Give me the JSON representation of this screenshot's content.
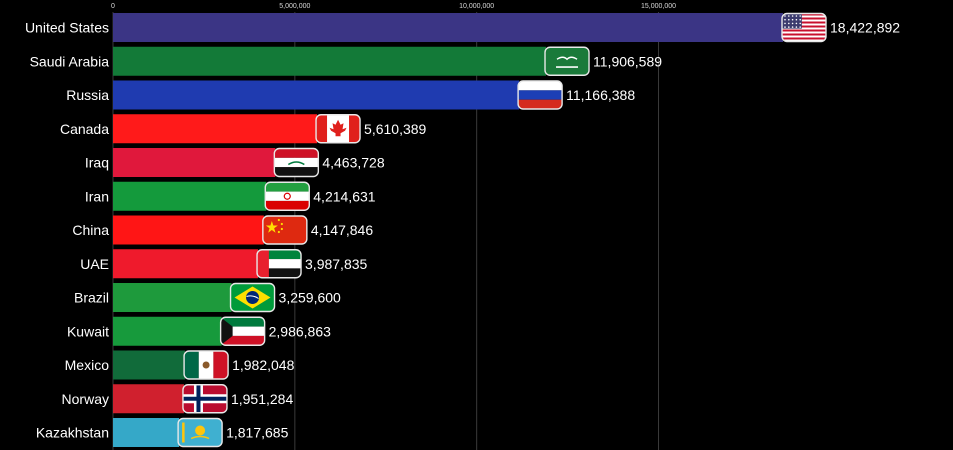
{
  "chart_data": {
    "type": "bar",
    "orientation": "horizontal",
    "title": "",
    "xlabel": "",
    "ylabel": "",
    "xlim": [
      0,
      18422892
    ],
    "x_ticks": [
      0,
      5000000,
      10000000,
      15000000
    ],
    "x_tick_labels": [
      "0",
      "5,000,000",
      "10,000,000",
      "15,000,000"
    ],
    "grid": true,
    "categories": [
      "United States",
      "Saudi Arabia",
      "Russia",
      "Canada",
      "Iraq",
      "Iran",
      "China",
      "UAE",
      "Brazil",
      "Kuwait",
      "Mexico",
      "Norway",
      "Kazakhstan"
    ],
    "values": [
      18422892,
      11906589,
      11166388,
      5610389,
      4463728,
      4214631,
      4147846,
      3987835,
      3259600,
      2986863,
      1982048,
      1951284,
      1817685
    ],
    "value_labels": [
      "18,422,892",
      "11,906,589",
      "11,166,388",
      "5,610,389",
      "4,463,728",
      "4,214,631",
      "4,147,846",
      "3,987,835",
      "3,259,600",
      "2,986,863",
      "1,982,048",
      "1,951,284",
      "1,817,685"
    ],
    "bar_colors": [
      "#3b3585",
      "#137a38",
      "#1f3bb0",
      "#ff1a1a",
      "#e0183c",
      "#149a3c",
      "#ff1515",
      "#ef1a2c",
      "#1e9a3c",
      "#179a3c",
      "#116b3a",
      "#d0202e",
      "#35a8c8"
    ],
    "flag_icons": [
      "usa-flag-icon",
      "saudi-arabia-flag-icon",
      "russia-flag-icon",
      "canada-flag-icon",
      "iraq-flag-icon",
      "iran-flag-icon",
      "china-flag-icon",
      "uae-flag-icon",
      "brazil-flag-icon",
      "kuwait-flag-icon",
      "mexico-flag-icon",
      "norway-flag-icon",
      "kazakhstan-flag-icon"
    ]
  }
}
